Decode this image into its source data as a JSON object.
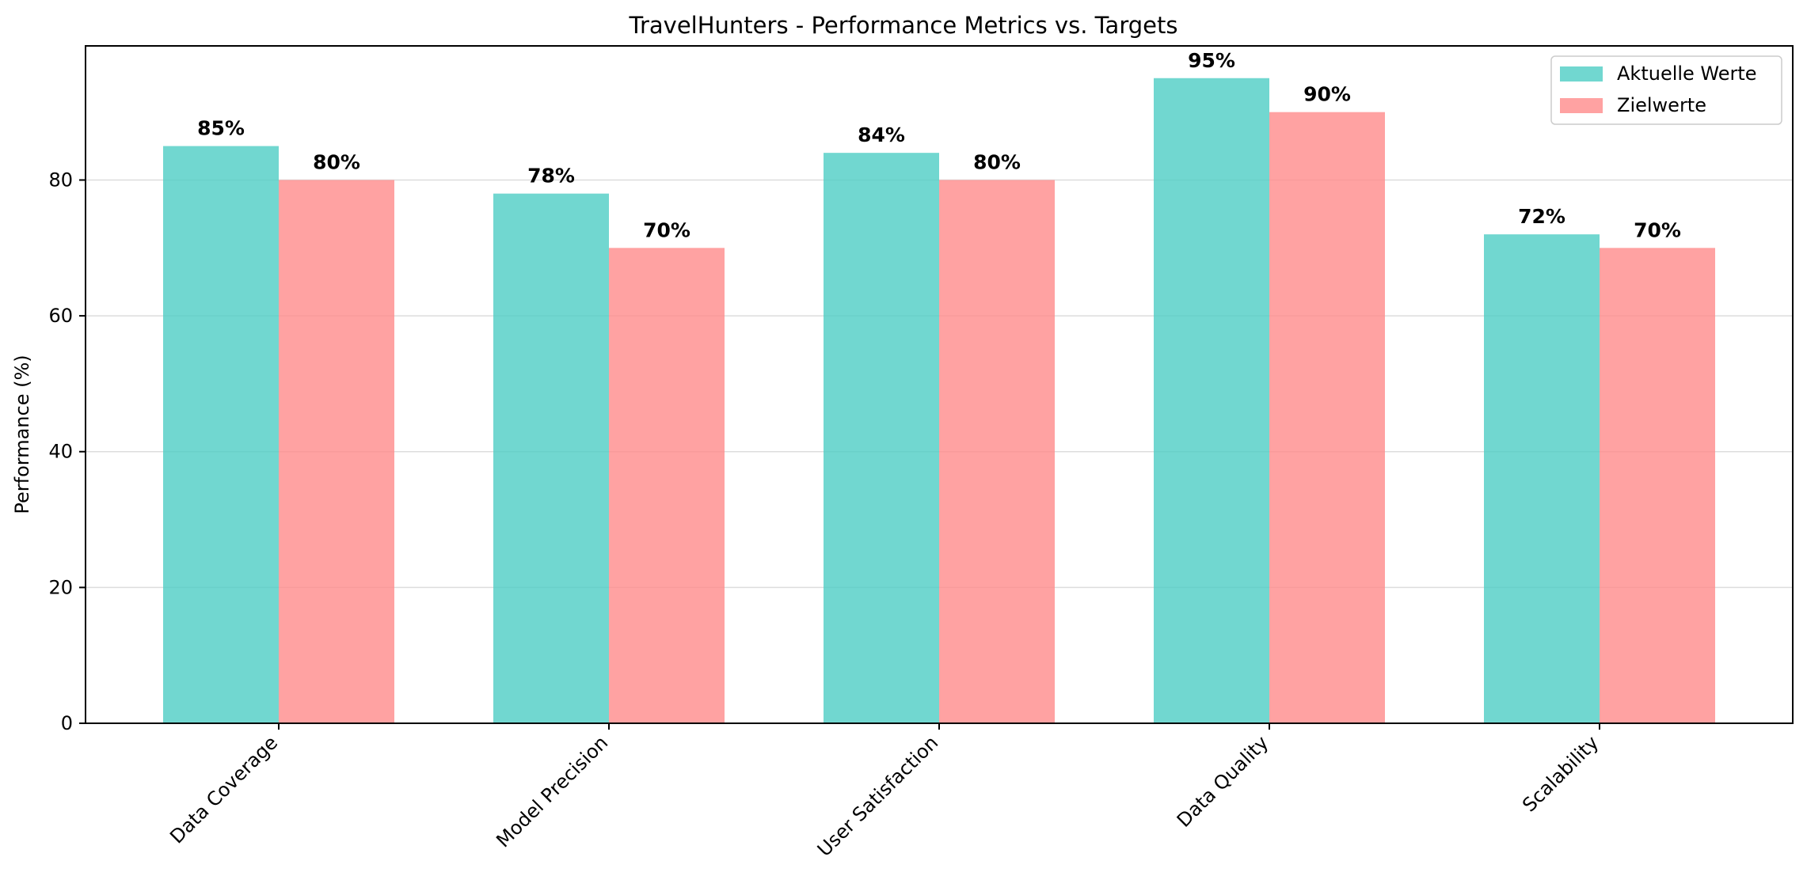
{
  "chart_data": {
    "type": "bar",
    "title": "TravelHunters - Performance Metrics vs. Targets",
    "xlabel": "",
    "ylabel": "Performance (%)",
    "categories": [
      "Data Coverage",
      "Model Precision",
      "User Satisfaction",
      "Data Quality",
      "Scalability"
    ],
    "series": [
      {
        "name": "Aktuelle Werte",
        "values": [
          85,
          78,
          84,
          95,
          72
        ],
        "labels": [
          "85%",
          "78%",
          "84%",
          "95%",
          "72%"
        ],
        "color": "#4ecdc4"
      },
      {
        "name": "Zielwerte",
        "values": [
          80,
          70,
          80,
          90,
          70
        ],
        "labels": [
          "80%",
          "70%",
          "80%",
          "90%",
          "70%"
        ],
        "color": "#ff8b8b"
      }
    ],
    "ylim": [
      0,
      99.75
    ],
    "yticks": [
      0,
      20,
      40,
      60,
      80
    ],
    "grid": "y",
    "legend_position": "top-right"
  }
}
